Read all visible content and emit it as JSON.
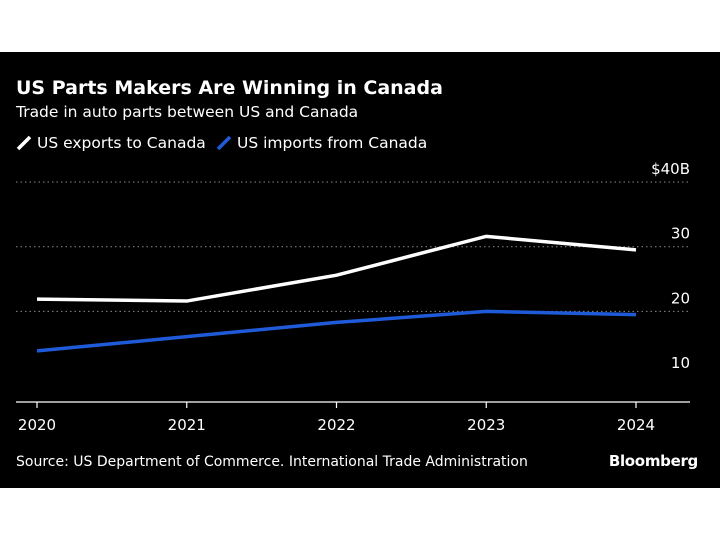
{
  "header": {
    "title": "US Parts Makers Are Winning in Canada",
    "subtitle": "Trade in auto parts between US and Canada"
  },
  "footer": {
    "source": "Source: US Department of Commerce. International Trade Administration",
    "logo": "Bloomberg"
  },
  "colors": {
    "background": "#000000",
    "exports": "#ffffff",
    "imports": "#1f5bd8",
    "grid": "#8a8a8a"
  },
  "chart_data": {
    "type": "line",
    "title": "US Parts Makers Are Winning in Canada",
    "subtitle": "Trade in auto parts between US and Canada",
    "xlabel": "",
    "ylabel": "",
    "categories": [
      "2020",
      "2021",
      "2022",
      "2023",
      "2024"
    ],
    "series": [
      {
        "name": "US exports to Canada",
        "color": "#ffffff",
        "values": [
          21.9,
          21.6,
          25.6,
          31.6,
          29.5
        ]
      },
      {
        "name": "US imports from Canada",
        "color": "#1f5bd8",
        "values": [
          13.9,
          16.1,
          18.3,
          20.0,
          19.5
        ]
      }
    ],
    "ylim": [
      6,
      40
    ],
    "yticks": [
      10,
      20,
      30,
      40
    ],
    "ytick_labels": [
      "10",
      "20",
      "30",
      "$40B"
    ],
    "grid": true,
    "grid_style": "dotted",
    "legend_position": "top-left",
    "y_axis_side": "right"
  }
}
